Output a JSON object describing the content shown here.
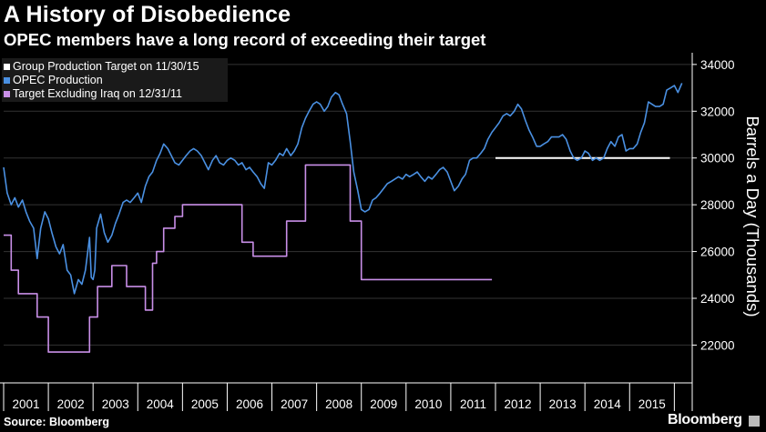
{
  "header": {
    "title": "A History of Disobedience",
    "subtitle": "OPEC members have a long record of exceeding their target"
  },
  "footer": {
    "source": "Source: Bloomberg",
    "brand": "Bloomberg"
  },
  "colors": {
    "background": "#000000",
    "target": "#ffffff",
    "opec": "#4a90e2",
    "iraq": "#c98fe8",
    "grid": "#333333",
    "legend_bg": "#1a1a1a"
  },
  "chart_data": {
    "type": "line",
    "title": "A History of Disobedience",
    "subtitle": "OPEC members have a long record of exceeding their target",
    "ylabel": "Barrels a Day (Thousands)",
    "ylim": [
      20500,
      34500
    ],
    "yticks": [
      "22000",
      "24000",
      "26000",
      "28000",
      "30000",
      "32000",
      "34000"
    ],
    "xlim": [
      2001,
      2016.4
    ],
    "xticks": [
      "2001",
      "2002",
      "2003",
      "2004",
      "2005",
      "2006",
      "2007",
      "2008",
      "2009",
      "2010",
      "2011",
      "2012",
      "2013",
      "2014",
      "2015"
    ],
    "grid": true,
    "legend_position": "top-left",
    "series": [
      {
        "name": "Group Production Target on 11/30/15",
        "color": "#ffffff",
        "points": [
          [
            2012.0,
            30000
          ],
          [
            2015.9,
            30000
          ]
        ]
      },
      {
        "name": "OPEC Production",
        "color": "#4a90e2",
        "points": [
          [
            2001.0,
            29600
          ],
          [
            2001.08,
            28500
          ],
          [
            2001.17,
            28000
          ],
          [
            2001.25,
            28300
          ],
          [
            2001.33,
            27900
          ],
          [
            2001.42,
            28200
          ],
          [
            2001.5,
            27700
          ],
          [
            2001.58,
            27300
          ],
          [
            2001.67,
            27000
          ],
          [
            2001.75,
            25700
          ],
          [
            2001.83,
            27000
          ],
          [
            2001.92,
            27700
          ],
          [
            2002.0,
            27400
          ],
          [
            2002.08,
            26800
          ],
          [
            2002.17,
            26200
          ],
          [
            2002.25,
            25900
          ],
          [
            2002.33,
            26300
          ],
          [
            2002.42,
            25200
          ],
          [
            2002.5,
            25000
          ],
          [
            2002.58,
            24200
          ],
          [
            2002.67,
            24800
          ],
          [
            2002.75,
            24600
          ],
          [
            2002.83,
            25200
          ],
          [
            2002.92,
            26600
          ],
          [
            2002.96,
            24900
          ],
          [
            2003.0,
            24800
          ],
          [
            2003.04,
            25200
          ],
          [
            2003.08,
            27000
          ],
          [
            2003.17,
            27600
          ],
          [
            2003.25,
            26800
          ],
          [
            2003.33,
            26400
          ],
          [
            2003.42,
            26700
          ],
          [
            2003.5,
            27200
          ],
          [
            2003.58,
            27600
          ],
          [
            2003.67,
            28100
          ],
          [
            2003.75,
            28200
          ],
          [
            2003.83,
            28100
          ],
          [
            2003.92,
            28300
          ],
          [
            2004.0,
            28500
          ],
          [
            2004.08,
            28100
          ],
          [
            2004.17,
            28800
          ],
          [
            2004.25,
            29200
          ],
          [
            2004.33,
            29400
          ],
          [
            2004.42,
            29900
          ],
          [
            2004.5,
            30200
          ],
          [
            2004.58,
            30600
          ],
          [
            2004.67,
            30400
          ],
          [
            2004.75,
            30100
          ],
          [
            2004.83,
            29800
          ],
          [
            2004.92,
            29700
          ],
          [
            2005.0,
            29900
          ],
          [
            2005.08,
            30100
          ],
          [
            2005.17,
            30300
          ],
          [
            2005.25,
            30400
          ],
          [
            2005.33,
            30300
          ],
          [
            2005.42,
            30100
          ],
          [
            2005.5,
            29800
          ],
          [
            2005.58,
            29500
          ],
          [
            2005.67,
            29900
          ],
          [
            2005.75,
            30100
          ],
          [
            2005.83,
            29800
          ],
          [
            2005.92,
            29700
          ],
          [
            2006.0,
            29900
          ],
          [
            2006.08,
            30000
          ],
          [
            2006.17,
            29900
          ],
          [
            2006.25,
            29700
          ],
          [
            2006.33,
            29800
          ],
          [
            2006.42,
            29500
          ],
          [
            2006.5,
            29600
          ],
          [
            2006.58,
            29400
          ],
          [
            2006.67,
            29200
          ],
          [
            2006.75,
            28900
          ],
          [
            2006.83,
            28700
          ],
          [
            2006.92,
            29800
          ],
          [
            2007.0,
            29700
          ],
          [
            2007.08,
            29900
          ],
          [
            2007.17,
            30200
          ],
          [
            2007.25,
            30100
          ],
          [
            2007.33,
            30400
          ],
          [
            2007.42,
            30100
          ],
          [
            2007.5,
            30300
          ],
          [
            2007.58,
            30600
          ],
          [
            2007.67,
            31300
          ],
          [
            2007.75,
            31700
          ],
          [
            2007.83,
            32000
          ],
          [
            2007.92,
            32300
          ],
          [
            2008.0,
            32400
          ],
          [
            2008.08,
            32300
          ],
          [
            2008.17,
            32000
          ],
          [
            2008.25,
            32200
          ],
          [
            2008.33,
            32600
          ],
          [
            2008.42,
            32800
          ],
          [
            2008.5,
            32700
          ],
          [
            2008.58,
            32300
          ],
          [
            2008.67,
            31900
          ],
          [
            2008.75,
            30700
          ],
          [
            2008.83,
            29400
          ],
          [
            2008.92,
            28600
          ],
          [
            2009.0,
            27800
          ],
          [
            2009.08,
            27700
          ],
          [
            2009.17,
            27800
          ],
          [
            2009.25,
            28200
          ],
          [
            2009.33,
            28300
          ],
          [
            2009.42,
            28500
          ],
          [
            2009.5,
            28700
          ],
          [
            2009.58,
            28900
          ],
          [
            2009.67,
            29000
          ],
          [
            2009.75,
            29100
          ],
          [
            2009.83,
            29200
          ],
          [
            2009.92,
            29100
          ],
          [
            2010.0,
            29300
          ],
          [
            2010.08,
            29200
          ],
          [
            2010.17,
            29300
          ],
          [
            2010.25,
            29400
          ],
          [
            2010.33,
            29200
          ],
          [
            2010.42,
            29000
          ],
          [
            2010.5,
            29200
          ],
          [
            2010.58,
            29100
          ],
          [
            2010.67,
            29300
          ],
          [
            2010.75,
            29500
          ],
          [
            2010.83,
            29600
          ],
          [
            2010.92,
            29400
          ],
          [
            2011.0,
            29000
          ],
          [
            2011.08,
            28600
          ],
          [
            2011.17,
            28800
          ],
          [
            2011.25,
            29100
          ],
          [
            2011.33,
            29300
          ],
          [
            2011.42,
            29900
          ],
          [
            2011.5,
            30000
          ],
          [
            2011.58,
            30000
          ],
          [
            2011.67,
            30200
          ],
          [
            2011.75,
            30400
          ],
          [
            2011.83,
            30800
          ],
          [
            2011.92,
            31100
          ],
          [
            2012.0,
            31300
          ],
          [
            2012.08,
            31500
          ],
          [
            2012.17,
            31800
          ],
          [
            2012.25,
            31900
          ],
          [
            2012.33,
            31800
          ],
          [
            2012.42,
            32000
          ],
          [
            2012.5,
            32300
          ],
          [
            2012.58,
            32100
          ],
          [
            2012.67,
            31600
          ],
          [
            2012.75,
            31200
          ],
          [
            2012.83,
            30900
          ],
          [
            2012.92,
            30500
          ],
          [
            2013.0,
            30500
          ],
          [
            2013.08,
            30600
          ],
          [
            2013.17,
            30700
          ],
          [
            2013.25,
            30900
          ],
          [
            2013.33,
            30900
          ],
          [
            2013.42,
            30900
          ],
          [
            2013.5,
            31000
          ],
          [
            2013.58,
            30800
          ],
          [
            2013.67,
            30300
          ],
          [
            2013.75,
            30000
          ],
          [
            2013.83,
            29900
          ],
          [
            2013.92,
            30000
          ],
          [
            2014.0,
            30300
          ],
          [
            2014.08,
            30200
          ],
          [
            2014.17,
            29900
          ],
          [
            2014.25,
            30000
          ],
          [
            2014.33,
            29900
          ],
          [
            2014.42,
            30000
          ],
          [
            2014.5,
            30400
          ],
          [
            2014.58,
            30700
          ],
          [
            2014.67,
            30500
          ],
          [
            2014.75,
            30900
          ],
          [
            2014.83,
            31000
          ],
          [
            2014.92,
            30300
          ],
          [
            2015.0,
            30400
          ],
          [
            2015.08,
            30400
          ],
          [
            2015.17,
            30600
          ],
          [
            2015.25,
            31100
          ],
          [
            2015.33,
            31500
          ],
          [
            2015.42,
            32400
          ],
          [
            2015.5,
            32300
          ],
          [
            2015.58,
            32200
          ],
          [
            2015.67,
            32200
          ],
          [
            2015.75,
            32300
          ],
          [
            2015.83,
            32900
          ],
          [
            2015.92,
            33000
          ],
          [
            2016.0,
            33100
          ],
          [
            2016.08,
            32800
          ],
          [
            2016.17,
            33200
          ]
        ]
      },
      {
        "name": "Target Excluding Iraq on 12/31/11",
        "color": "#c98fe8",
        "points": [
          [
            2001.0,
            26700
          ],
          [
            2001.17,
            26700
          ],
          [
            2001.17,
            25200
          ],
          [
            2001.33,
            25200
          ],
          [
            2001.33,
            24200
          ],
          [
            2001.75,
            24200
          ],
          [
            2001.75,
            23200
          ],
          [
            2002.0,
            23200
          ],
          [
            2002.0,
            21700
          ],
          [
            2002.92,
            21700
          ],
          [
            2002.92,
            23200
          ],
          [
            2003.1,
            23200
          ],
          [
            2003.1,
            24500
          ],
          [
            2003.42,
            24500
          ],
          [
            2003.42,
            25400
          ],
          [
            2003.75,
            25400
          ],
          [
            2003.75,
            24500
          ],
          [
            2004.17,
            24500
          ],
          [
            2004.17,
            23500
          ],
          [
            2004.33,
            23500
          ],
          [
            2004.33,
            25500
          ],
          [
            2004.42,
            25500
          ],
          [
            2004.42,
            26000
          ],
          [
            2004.58,
            26000
          ],
          [
            2004.58,
            27000
          ],
          [
            2004.83,
            27000
          ],
          [
            2004.83,
            27500
          ],
          [
            2005.0,
            27500
          ],
          [
            2005.0,
            28000
          ],
          [
            2006.33,
            28000
          ],
          [
            2006.33,
            26400
          ],
          [
            2006.58,
            26400
          ],
          [
            2006.58,
            25800
          ],
          [
            2007.33,
            25800
          ],
          [
            2007.33,
            27300
          ],
          [
            2007.75,
            27300
          ],
          [
            2007.75,
            29700
          ],
          [
            2008.75,
            29700
          ],
          [
            2008.75,
            27300
          ],
          [
            2009.0,
            27300
          ],
          [
            2009.0,
            24800
          ],
          [
            2011.92,
            24800
          ]
        ]
      }
    ]
  }
}
